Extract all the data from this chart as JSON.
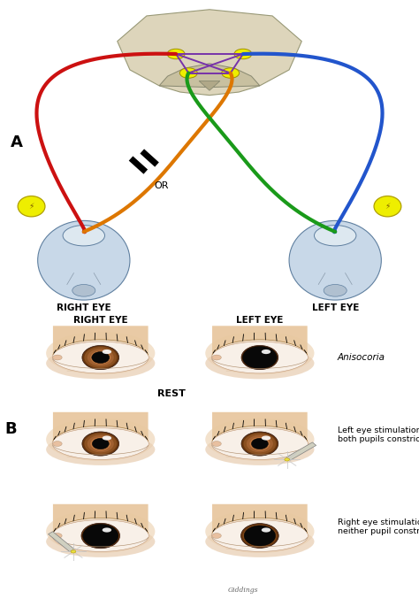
{
  "bg_color": "#ffffff",
  "panel_a_label": "A",
  "panel_b_label": "B",
  "right_eye_label": "RIGHT EYE",
  "left_eye_label": "LEFT EYE",
  "or_label": "OR",
  "rest_label": "REST",
  "anisocoria_label": "Anisocoria",
  "left_stim_label": "Left eye stimulation:\nboth pupils constrict",
  "right_stim_label": "Right eye stimulation:\nneither pupil constricts",
  "red_color": "#cc1111",
  "blue_color": "#2255cc",
  "green_color": "#1a9a1a",
  "orange_color": "#dd7700",
  "purple_color": "#7733aa",
  "yellow_color": "#eeee00",
  "brain_color": "#ddd5bb",
  "eye_sclera": "#c8d8e8",
  "eye_iris_dark": "#7a4a20",
  "eye_iris_light": "#b07840",
  "eye_pupil": "#0a0a0a",
  "skin_light": "#f5dfc0",
  "skin_dark": "#d4a878",
  "lw_nerve": 3.0
}
